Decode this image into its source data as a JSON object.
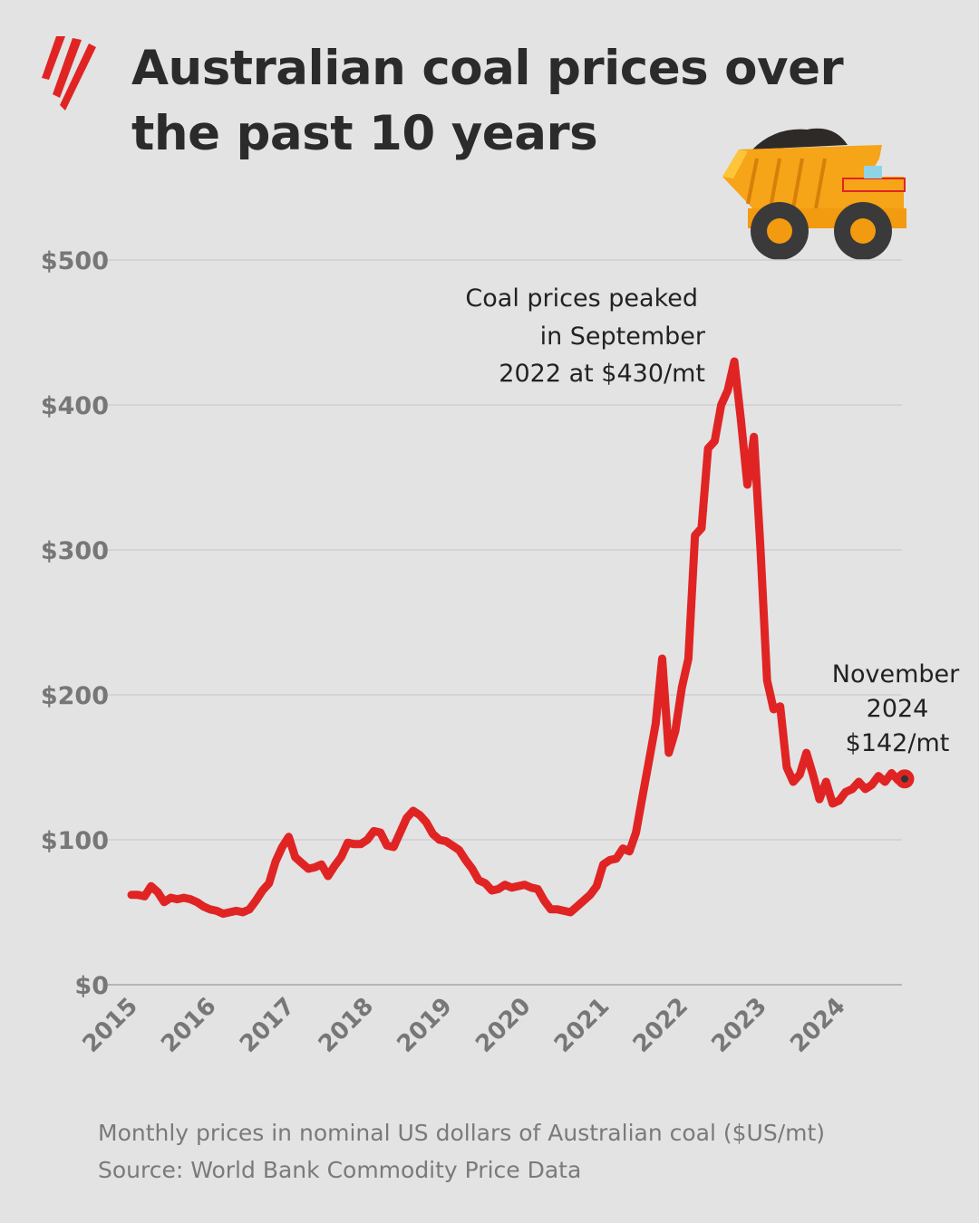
{
  "header": {
    "title": "Australian coal prices over the past 10 years"
  },
  "colors": {
    "line": "#e02424",
    "background": "#e3e3e3",
    "grid": "#cfcfcf",
    "axis_text": "#777777",
    "title": "#2b2b2b"
  },
  "icons": [
    "sbs-logo",
    "dump-truck-illustration"
  ],
  "chart_data": {
    "type": "line",
    "x_start": "2015-01",
    "x_end": "2024-11",
    "frequency": "monthly",
    "ylim": [
      0,
      500
    ],
    "grid": "horizontal",
    "y_ticks": [
      0,
      100,
      200,
      300,
      400,
      500
    ],
    "y_tick_labels": [
      "$0",
      "$100",
      "$200",
      "$300",
      "$400",
      "$500"
    ],
    "x_tick_labels": [
      "2015",
      "2016",
      "2017",
      "2018",
      "2019",
      "2020",
      "2021",
      "2022",
      "2023",
      "2024"
    ],
    "values": [
      62,
      62,
      61,
      68,
      64,
      57,
      60,
      59,
      60,
      59,
      57,
      54,
      52,
      51,
      49,
      50,
      51,
      50,
      52,
      58,
      65,
      70,
      85,
      95,
      102,
      88,
      84,
      80,
      81,
      83,
      75,
      82,
      88,
      98,
      97,
      97,
      100,
      106,
      105,
      96,
      95,
      105,
      115,
      120,
      117,
      112,
      104,
      100,
      99,
      96,
      93,
      86,
      80,
      72,
      70,
      65,
      66,
      69,
      67,
      68,
      69,
      67,
      66,
      58,
      52,
      52,
      51,
      50,
      54,
      58,
      62,
      68,
      83,
      86,
      87,
      94,
      92,
      105,
      130,
      155,
      180,
      225,
      160,
      175,
      205,
      225,
      310,
      315,
      370,
      375,
      400,
      410,
      430,
      390,
      345,
      378,
      300,
      210,
      190,
      192,
      150,
      140,
      145,
      160,
      145,
      128,
      140,
      125,
      127,
      133,
      135,
      140,
      135,
      138,
      144,
      140,
      146,
      141,
      142
    ],
    "annotations": [
      {
        "label": "Coal prices peaked in September 2022 at $430/mt",
        "lines": [
          "Coal prices peaked",
          "in September",
          "2022 at $430/mt"
        ]
      },
      {
        "label": "November 2024 $142/mt",
        "lines": [
          "November",
          "2024",
          "$142/mt"
        ]
      }
    ]
  },
  "footer": {
    "note": "Monthly prices in nominal US dollars of Australian coal ($US/mt)",
    "source": "Source: World Bank Commodity Price Data"
  }
}
